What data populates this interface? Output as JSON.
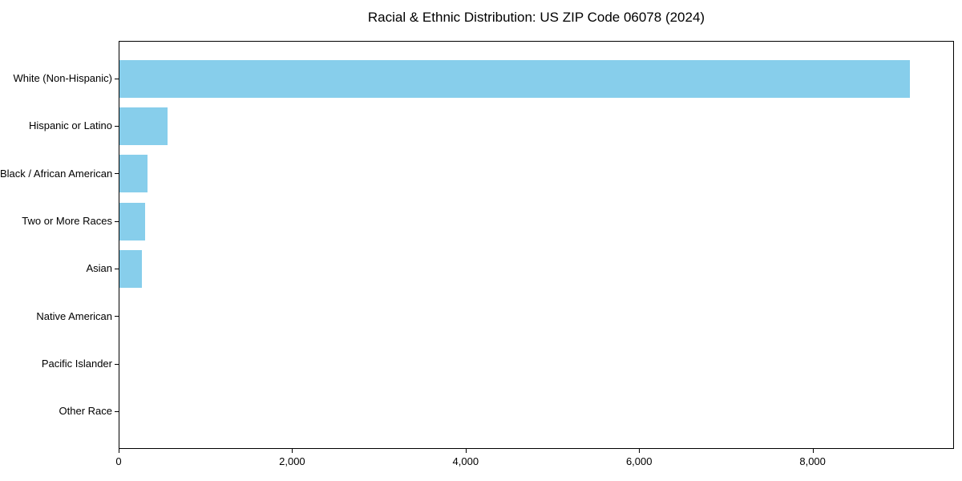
{
  "chart_data": {
    "type": "bar",
    "orientation": "horizontal",
    "title": "Racial & Ethnic Distribution: US ZIP Code 06078 (2024)",
    "categories": [
      "White (Non-Hispanic)",
      "Hispanic or Latino",
      "Black / African American",
      "Two or More Races",
      "Asian",
      "Native American",
      "Pacific Islander",
      "Other Race"
    ],
    "values": [
      9130,
      554,
      325,
      300,
      258,
      0,
      0,
      0
    ],
    "xlabel": "",
    "ylabel": "",
    "xlim": [
      0,
      9630
    ],
    "xticks": [
      {
        "value": 0,
        "label": "0"
      },
      {
        "value": 2000,
        "label": "2,000"
      },
      {
        "value": 4000,
        "label": "4,000"
      },
      {
        "value": 6000,
        "label": "6,000"
      },
      {
        "value": 8000,
        "label": "8,000"
      }
    ],
    "grid": false,
    "legend": null
  },
  "colors": {
    "bar": "#87CEEB",
    "axis": "#000000",
    "text": "#000000",
    "background": "#FFFFFF"
  }
}
